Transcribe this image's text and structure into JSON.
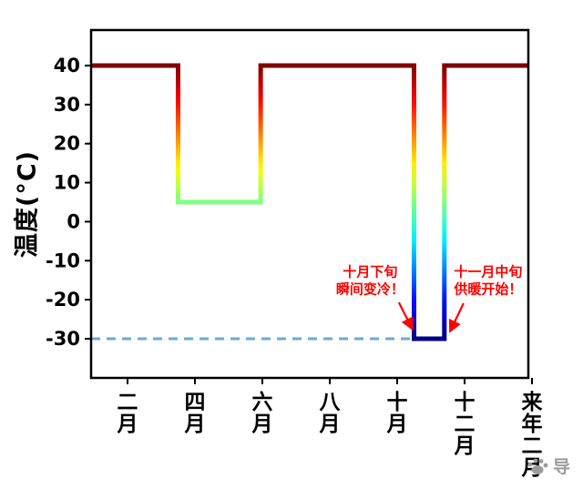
{
  "chart_data": {
    "type": "line",
    "title": "",
    "xlabel": "",
    "ylabel": "温度(°C)",
    "ylim": [
      -40,
      49
    ],
    "xlim_months": [
      0.92,
      13.89
    ],
    "grid": false,
    "legend": "none",
    "yticks": [
      40,
      30,
      20,
      10,
      0,
      -10,
      -20,
      -30
    ],
    "x_ticks": [
      {
        "month": 2,
        "label": "二月"
      },
      {
        "month": 4,
        "label": "四月"
      },
      {
        "month": 6,
        "label": "六月"
      },
      {
        "month": 8,
        "label": "八月"
      },
      {
        "month": 10,
        "label": "十月"
      },
      {
        "month": 12,
        "label": "十二月"
      },
      {
        "month": 14,
        "label": "来年二月"
      }
    ],
    "series": [
      {
        "name": "温度",
        "style": "step",
        "colormap": "jet",
        "color_domain_temp": [
          -30,
          40
        ],
        "line_width": 5,
        "steps": [
          {
            "from_month": 0.92,
            "to_month": 3.5,
            "temp": 40
          },
          {
            "from_month": 3.5,
            "to_month": 5.95,
            "temp": 5
          },
          {
            "from_month": 5.95,
            "to_month": 10.5,
            "temp": 40
          },
          {
            "from_month": 10.5,
            "to_month": 11.4,
            "temp": -30
          },
          {
            "from_month": 11.4,
            "to_month": 13.89,
            "temp": 40
          }
        ]
      }
    ],
    "reference_line": {
      "y_temp": -30,
      "style": "dashed",
      "color": "#6fa8d6",
      "from_month": 0.92,
      "to_month": 10.45
    },
    "annotations": [
      {
        "lines": [
          "十月下旬",
          "瞬间变冷！"
        ],
        "color": "#ff0000",
        "x_month": 9.2,
        "y_temp": -14,
        "arrow_from": {
          "month": 10.05,
          "temp": -20.7
        },
        "arrow_to": {
          "month": 10.45,
          "temp": -27.5
        }
      },
      {
        "lines": [
          "十一月中旬",
          "供暖开始！"
        ],
        "color": "#ff0000",
        "x_month": 12.7,
        "y_temp": -14,
        "arrow_from": {
          "month": 11.97,
          "temp": -20.9
        },
        "arrow_to": {
          "month": 11.57,
          "temp": -28.1
        }
      }
    ]
  },
  "watermark": {
    "text": "导",
    "icon": "paw-icon",
    "color": "#9b9b9b"
  }
}
